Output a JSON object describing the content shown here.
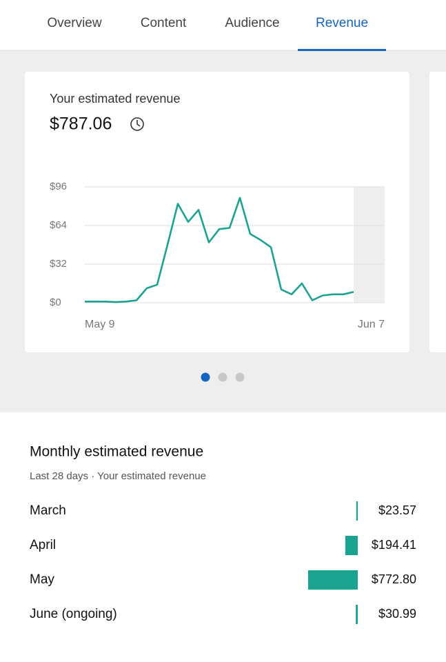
{
  "tabs": [
    "Overview",
    "Content",
    "Audience",
    "Revenue"
  ],
  "active_tab": 3,
  "chart_data": [
    {
      "type": "line",
      "title": "Your estimated revenue",
      "subtitle": "$787.06",
      "categories": [
        "May 9",
        null,
        null,
        null,
        null,
        null,
        null,
        null,
        null,
        null,
        null,
        null,
        null,
        null,
        null,
        null,
        null,
        null,
        null,
        null,
        null,
        null,
        null,
        null,
        null,
        null,
        null,
        null,
        null,
        "Jun 7"
      ],
      "values": [
        1,
        1,
        1,
        0.5,
        1,
        2,
        12,
        15,
        48,
        82,
        67,
        77,
        50,
        61,
        62,
        87,
        57,
        52,
        46,
        11,
        7,
        16,
        2,
        6,
        7,
        7,
        9,
        null,
        null,
        null
      ],
      "color": "#1aa391",
      "ylim": [
        0,
        96
      ],
      "yticks": [
        {
          "value": 0,
          "label": "$0"
        },
        {
          "value": 32,
          "label": "$32"
        },
        {
          "value": 64,
          "label": "$64"
        },
        {
          "value": 96,
          "label": "$96"
        }
      ],
      "grid": true
    },
    {
      "type": "bar",
      "orientation": "horizontal",
      "title": "Monthly estimated revenue",
      "subtitle": "Last 28 days · Your estimated revenue",
      "categories": [
        "March",
        "April",
        "May",
        "June (ongoing)"
      ],
      "values": [
        23.57,
        194.41,
        772.8,
        30.99
      ],
      "value_labels": [
        "$23.57",
        "$194.41",
        "$772.80",
        "$30.99"
      ],
      "color": "#1aa391"
    }
  ]
}
